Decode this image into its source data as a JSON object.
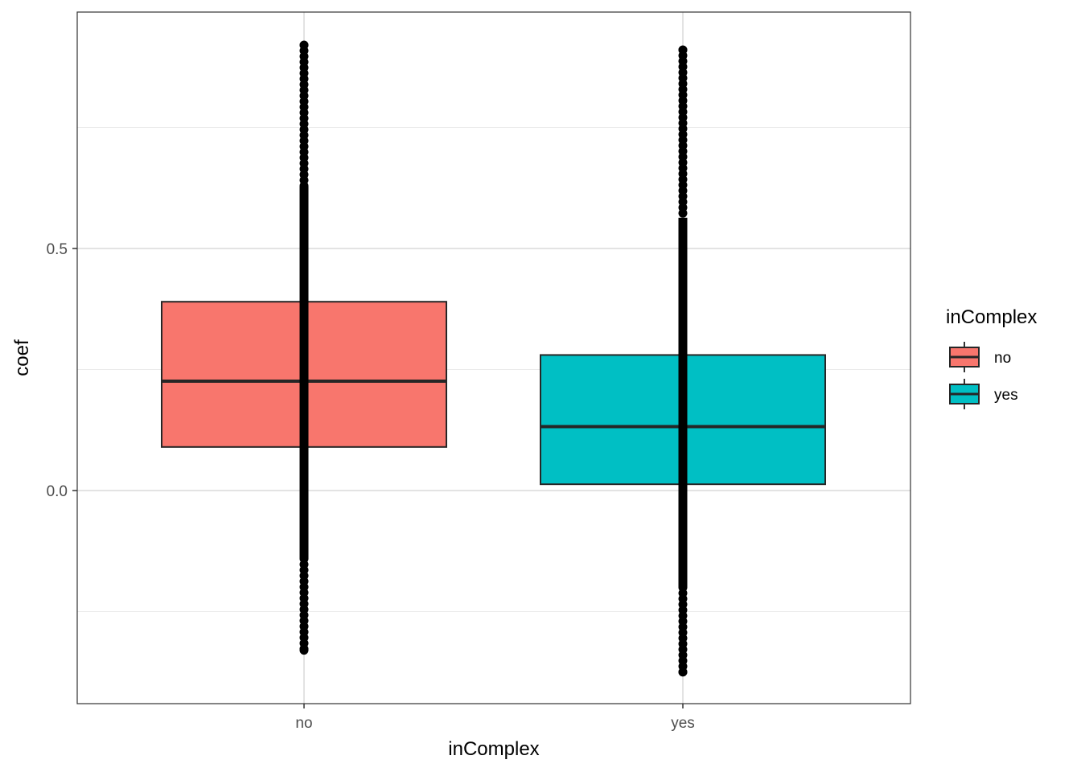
{
  "chart_data": {
    "type": "boxplot",
    "xlabel": "inComplex",
    "ylabel": "coef",
    "categories": [
      "no",
      "yes"
    ],
    "ylim": [
      -0.43,
      0.99
    ],
    "y_ticks": [
      0.0,
      0.5
    ],
    "y_tick_labels": [
      "0.0",
      "0.5"
    ],
    "y_minor_gridlines": [
      -0.25,
      0.25,
      0.75
    ],
    "grid": true,
    "legend": {
      "title": "inComplex",
      "position": "right",
      "entries": [
        {
          "label": "no",
          "color": "#F8766D"
        },
        {
          "label": "yes",
          "color": "#00BFC4"
        }
      ]
    },
    "boxes": [
      {
        "category": "no",
        "color": "#F8766D",
        "q1": 0.09,
        "median": 0.226,
        "q3": 0.39,
        "points_min": -0.33,
        "points_max": 0.92
      },
      {
        "category": "yes",
        "color": "#00BFC4",
        "q1": 0.013,
        "median": 0.132,
        "q3": 0.28,
        "points_min": -0.375,
        "points_max": 0.91
      }
    ]
  }
}
